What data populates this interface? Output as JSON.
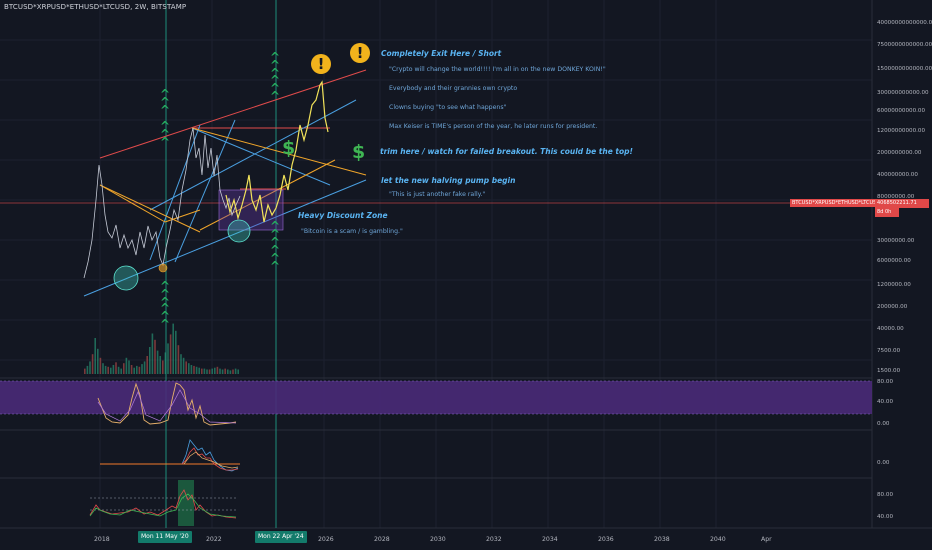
{
  "symbol": "BTCUSD*XRPUSD*ETHUSD*LTCUSD, 2W, BITSTAMP",
  "annotations": {
    "exit": "Completely Exit Here / Short",
    "donkey": "\"Crypto will change the world!!!! I'm all in on the new DONKEY KOIN!\"",
    "grannies": "Everybody and their grannies own crypto",
    "clowns": "Clowns buying \"to see what happens\"",
    "keiser": "Max Keiser is TIME's person of the year, he later runs for president.",
    "trim": "trim here / watch for failed breakout. This could be the top!",
    "halving": "let the new halving pump begin",
    "fake_rally": "\"This is just another fake rally.\"",
    "discount": "Heavy Discount Zone",
    "scam": "\"Bitcoin is a scam / is gambling.\""
  },
  "price_axis": [
    "40000000000000.00",
    "7500000000000.00",
    "1500000000000.00",
    "300000000000.00",
    "60000000000.00",
    "12000000000.00",
    "2000000000.00",
    "400000000.00",
    "80000000.00",
    "30000000.00",
    "6000000.00",
    "1200000.00",
    "200000.00",
    "40000.00",
    "7500.00",
    "1500.00"
  ],
  "rsi_axis": [
    "80.00",
    "40.00",
    "0.00"
  ],
  "osc_axis": [
    "0.00"
  ],
  "stoch_axis": [
    "80.00",
    "40.00"
  ],
  "price_tag": {
    "symbol": "BTCUSD*XRPUSD*ETHUSD*LTCUSD",
    "value": "4068502211.71",
    "countdown": "8d 0h"
  },
  "time_axis": {
    "labels": [
      "2018",
      "2022",
      "2026",
      "2028",
      "2030",
      "2032",
      "2034",
      "2036",
      "2038",
      "2040",
      "Apr"
    ],
    "highlight_1": "Mon 11 May '20",
    "highlight_2": "Mon 22 Apr '24"
  },
  "icons": {
    "warning": "!",
    "dollar": "$",
    "chevron": "^"
  },
  "colors": {
    "background": "#131722",
    "red_channel": "#e04b4b",
    "blue_channel": "#4a9fe0",
    "orange_lines": "#f0a52a",
    "price_yellow": "#f2e35a",
    "vertical_marker": "#1e8c7a",
    "rsi_band": "#4a2a78",
    "annotation_blue": "#5ab4f2",
    "green_chevron": "#25a85f",
    "warning_yellow": "#f2b31c"
  }
}
